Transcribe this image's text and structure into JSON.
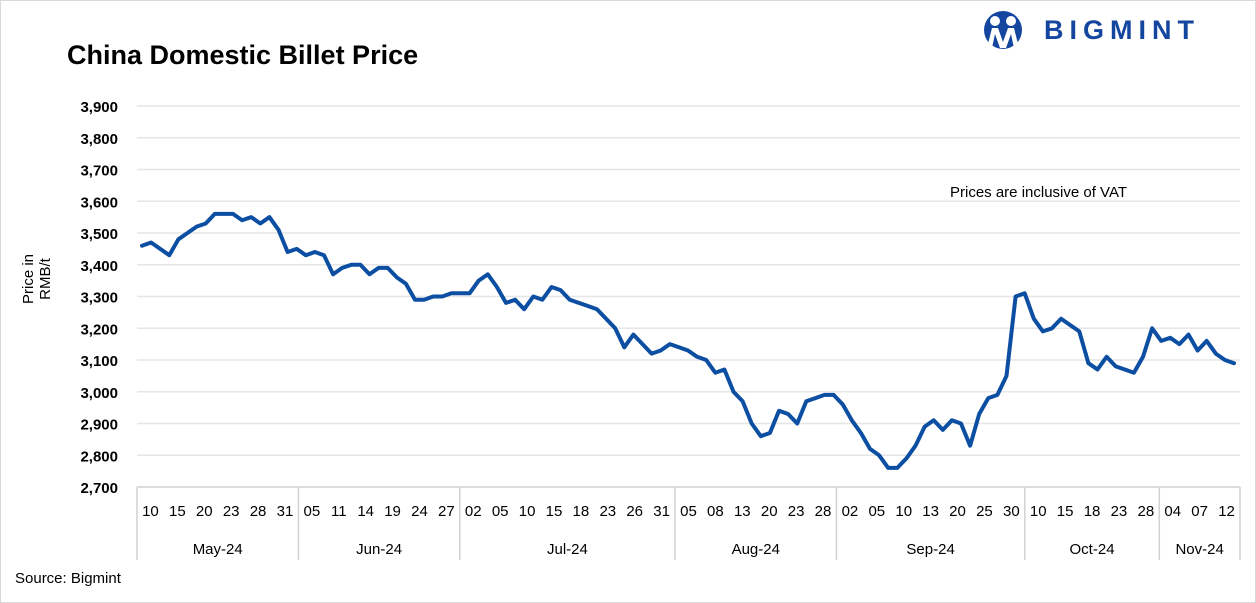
{
  "brand": {
    "name": "BIGMINT",
    "color": "#1446a0"
  },
  "chart_data": {
    "type": "line",
    "title": "China Domestic Billet Price",
    "ylabel": "Price in RMB/t",
    "xlabel": "",
    "annotation": "Prices are inclusive of VAT",
    "source": "Source: Bigmint",
    "ylim": [
      2700,
      3900
    ],
    "yticks": [
      2700,
      2800,
      2900,
      3000,
      3100,
      3200,
      3300,
      3400,
      3500,
      3600,
      3700,
      3800,
      3900
    ],
    "ytick_labels": [
      "2,700",
      "2,800",
      "2,900",
      "3,000",
      "3,100",
      "3,200",
      "3,300",
      "3,400",
      "3,500",
      "3,600",
      "3,700",
      "3,800",
      "3,900"
    ],
    "grid": true,
    "line_color": "#0b4ea2",
    "xtick_labels": [
      "10",
      "15",
      "20",
      "23",
      "28",
      "31",
      "05",
      "11",
      "14",
      "19",
      "24",
      "27",
      "02",
      "05",
      "10",
      "15",
      "18",
      "23",
      "26",
      "31",
      "05",
      "08",
      "13",
      "20",
      "23",
      "28",
      "02",
      "05",
      "10",
      "13",
      "20",
      "25",
      "30",
      "10",
      "15",
      "18",
      "23",
      "28",
      "04",
      "07",
      "12"
    ],
    "month_groups": [
      {
        "label": "May-24",
        "ticks": 6
      },
      {
        "label": "Jun-24",
        "ticks": 6
      },
      {
        "label": "Jul-24",
        "ticks": 8
      },
      {
        "label": "Aug-24",
        "ticks": 6
      },
      {
        "label": "Sep-24",
        "ticks": 7
      },
      {
        "label": "Oct-24",
        "ticks": 5
      },
      {
        "label": "Nov-24",
        "ticks": 3
      }
    ],
    "values": [
      3460,
      3470,
      3450,
      3430,
      3480,
      3500,
      3520,
      3530,
      3560,
      3560,
      3560,
      3540,
      3550,
      3530,
      3550,
      3510,
      3440,
      3450,
      3430,
      3440,
      3430,
      3370,
      3390,
      3400,
      3400,
      3370,
      3390,
      3390,
      3360,
      3340,
      3290,
      3290,
      3300,
      3300,
      3310,
      3310,
      3310,
      3350,
      3370,
      3330,
      3280,
      3290,
      3260,
      3300,
      3290,
      3330,
      3320,
      3290,
      3280,
      3270,
      3260,
      3230,
      3200,
      3140,
      3180,
      3150,
      3120,
      3130,
      3150,
      3140,
      3130,
      3110,
      3100,
      3060,
      3070,
      3000,
      2970,
      2900,
      2860,
      2870,
      2940,
      2930,
      2900,
      2970,
      2980,
      2990,
      2990,
      2960,
      2910,
      2870,
      2820,
      2800,
      2760,
      2760,
      2790,
      2830,
      2890,
      2910,
      2880,
      2910,
      2900,
      2830,
      2930,
      2980,
      2990,
      3050,
      3300,
      3310,
      3230,
      3190,
      3200,
      3230,
      3210,
      3190,
      3090,
      3070,
      3110,
      3080,
      3070,
      3060,
      3110,
      3200,
      3160,
      3170,
      3150,
      3180,
      3130,
      3160,
      3120,
      3100,
      3090
    ]
  }
}
